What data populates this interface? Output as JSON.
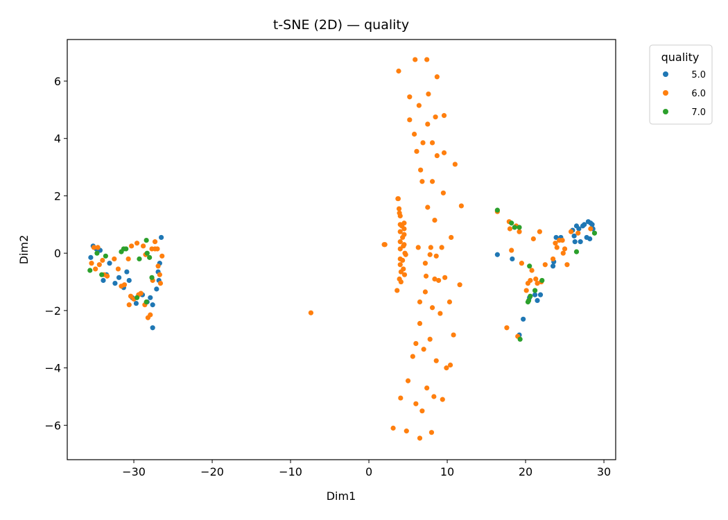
{
  "chart_data": {
    "type": "scatter",
    "title": "t-SNE (2D) — quality",
    "xlabel": "Dim1",
    "ylabel": "Dim2",
    "xlim": [
      -38.5,
      31.5
    ],
    "ylim": [
      -7.2,
      7.45
    ],
    "xticks": [
      -30,
      -20,
      -10,
      0,
      10,
      20,
      30
    ],
    "yticks": [
      -6,
      -4,
      -2,
      0,
      2,
      4,
      6
    ],
    "xtick_labels": [
      "−30",
      "−20",
      "−10",
      "0",
      "10",
      "20",
      "30"
    ],
    "ytick_labels": [
      "−6",
      "−4",
      "−2",
      "0",
      "2",
      "4",
      "6"
    ],
    "grid": false,
    "legend": {
      "title": "quality",
      "placement": "outside-top-right"
    },
    "series": [
      {
        "name": "5.0",
        "color": "#1f77b4",
        "points": [
          [
            -35.2,
            0.25
          ],
          [
            -35.5,
            -0.15
          ],
          [
            -34.8,
            0.15
          ],
          [
            -34.3,
            0.1
          ],
          [
            -33.9,
            -0.95
          ],
          [
            -33.5,
            -0.75
          ],
          [
            -33.1,
            -0.35
          ],
          [
            -32.4,
            -1.05
          ],
          [
            -31.9,
            -0.85
          ],
          [
            -31.3,
            -1.2
          ],
          [
            -30.9,
            -0.65
          ],
          [
            -30.6,
            -0.95
          ],
          [
            -30.2,
            -1.55
          ],
          [
            -29.7,
            -1.75
          ],
          [
            -28.9,
            -1.45
          ],
          [
            -28.3,
            -1.7
          ],
          [
            -27.9,
            -1.55
          ],
          [
            -27.6,
            -1.8
          ],
          [
            -27.6,
            -2.6
          ],
          [
            -27.1,
            -1.25
          ],
          [
            -26.8,
            -0.95
          ],
          [
            -26.7,
            -0.35
          ],
          [
            -26.5,
            0.55
          ],
          [
            -26.9,
            -0.65
          ],
          [
            16.4,
            -0.05
          ],
          [
            18.3,
            -0.2
          ],
          [
            19.2,
            -2.85
          ],
          [
            19.7,
            -2.3
          ],
          [
            20.5,
            -1.55
          ],
          [
            21.2,
            -1.45
          ],
          [
            21.5,
            -1.65
          ],
          [
            21.9,
            -1.45
          ],
          [
            23.5,
            -0.45
          ],
          [
            23.6,
            -0.3
          ],
          [
            23.9,
            0.55
          ],
          [
            24.5,
            0.55
          ],
          [
            26.0,
            0.8
          ],
          [
            26.2,
            0.6
          ],
          [
            26.3,
            0.4
          ],
          [
            26.5,
            0.95
          ],
          [
            26.8,
            0.85
          ],
          [
            27.0,
            0.4
          ],
          [
            27.3,
            0.95
          ],
          [
            27.5,
            1.0
          ],
          [
            27.8,
            0.55
          ],
          [
            28.0,
            1.1
          ],
          [
            28.2,
            0.5
          ],
          [
            28.3,
            1.05
          ],
          [
            28.5,
            1.0
          ],
          [
            28.6,
            0.85
          ]
        ]
      },
      {
        "name": "6.0",
        "color": "#ff7f0e",
        "points": [
          [
            -35.1,
            0.2
          ],
          [
            -35.4,
            -0.35
          ],
          [
            -34.9,
            -0.55
          ],
          [
            -34.6,
            0.2
          ],
          [
            -34.4,
            -0.4
          ],
          [
            -34.0,
            -0.25
          ],
          [
            -33.8,
            -0.75
          ],
          [
            -33.4,
            -0.8
          ],
          [
            -32.5,
            -0.2
          ],
          [
            -32.0,
            -0.55
          ],
          [
            -31.6,
            -1.15
          ],
          [
            -31.2,
            -1.1
          ],
          [
            -30.7,
            -0.2
          ],
          [
            -30.4,
            -1.5
          ],
          [
            -30.0,
            -1.6
          ],
          [
            -30.6,
            -1.8
          ],
          [
            -30.3,
            0.25
          ],
          [
            -29.6,
            0.35
          ],
          [
            -29.4,
            -1.45
          ],
          [
            -29.1,
            -1.4
          ],
          [
            -28.6,
            -1.8
          ],
          [
            -28.2,
            -2.25
          ],
          [
            -27.9,
            -2.15
          ],
          [
            -27.7,
            0.15
          ],
          [
            -27.6,
            -0.95
          ],
          [
            -27.3,
            0.4
          ],
          [
            -27.3,
            0.15
          ],
          [
            -27.0,
            0.15
          ],
          [
            -26.9,
            -0.45
          ],
          [
            -26.7,
            -0.75
          ],
          [
            -26.6,
            -1.05
          ],
          [
            -26.4,
            -0.1
          ],
          [
            -28.5,
            -0.05
          ],
          [
            -28.8,
            0.25
          ],
          [
            -7.4,
            -2.08
          ],
          [
            1.95,
            0.3
          ],
          [
            2.05,
            0.3
          ],
          [
            3.1,
            -6.1
          ],
          [
            3.6,
            -1.3
          ],
          [
            3.7,
            1.9
          ],
          [
            3.75,
            1.9
          ],
          [
            3.8,
            6.35
          ],
          [
            3.9,
            -0.9
          ],
          [
            3.85,
            1.55
          ],
          [
            3.9,
            1.4
          ],
          [
            4.0,
            1.3
          ],
          [
            4.0,
            1.0
          ],
          [
            4.0,
            0.75
          ],
          [
            4.0,
            0.4
          ],
          [
            4.0,
            0.15
          ],
          [
            4.0,
            -0.2
          ],
          [
            4.0,
            -0.4
          ],
          [
            4.1,
            -0.65
          ],
          [
            4.1,
            -1.0
          ],
          [
            4.05,
            -5.05
          ],
          [
            4.2,
            0.95
          ],
          [
            4.3,
            0.55
          ],
          [
            4.3,
            -0.25
          ],
          [
            4.4,
            -0.55
          ],
          [
            4.4,
            0.25
          ],
          [
            4.5,
            0.65
          ],
          [
            4.5,
            1.05
          ],
          [
            4.5,
            0.85
          ],
          [
            4.5,
            0.3
          ],
          [
            4.55,
            -0.75
          ],
          [
            4.6,
            0.0
          ],
          [
            4.7,
            -0.05
          ],
          [
            4.8,
            -6.2
          ],
          [
            5.0,
            -4.45
          ],
          [
            5.2,
            4.65
          ],
          [
            5.2,
            5.45
          ],
          [
            5.6,
            -3.6
          ],
          [
            5.8,
            4.15
          ],
          [
            5.9,
            6.75
          ],
          [
            6.0,
            -3.15
          ],
          [
            6.0,
            -5.25
          ],
          [
            6.1,
            3.55
          ],
          [
            6.3,
            0.2
          ],
          [
            6.4,
            5.15
          ],
          [
            6.5,
            -1.7
          ],
          [
            6.5,
            -2.45
          ],
          [
            6.5,
            -6.45
          ],
          [
            6.6,
            2.9
          ],
          [
            6.8,
            -5.5
          ],
          [
            6.8,
            2.5
          ],
          [
            6.9,
            3.85
          ],
          [
            7.0,
            -3.35
          ],
          [
            7.2,
            -0.35
          ],
          [
            7.2,
            -1.35
          ],
          [
            7.3,
            -0.8
          ],
          [
            7.4,
            -4.7
          ],
          [
            7.4,
            6.75
          ],
          [
            7.5,
            1.6
          ],
          [
            7.5,
            4.5
          ],
          [
            7.6,
            5.55
          ],
          [
            7.8,
            -0.05
          ],
          [
            7.8,
            -3.0
          ],
          [
            7.9,
            0.2
          ],
          [
            8.0,
            -6.25
          ],
          [
            8.1,
            -1.9
          ],
          [
            8.1,
            3.85
          ],
          [
            8.1,
            2.5
          ],
          [
            8.3,
            -5.0
          ],
          [
            8.4,
            1.15
          ],
          [
            8.4,
            -0.9
          ],
          [
            8.5,
            4.75
          ],
          [
            8.6,
            -3.75
          ],
          [
            8.6,
            -0.1
          ],
          [
            8.7,
            6.15
          ],
          [
            8.7,
            3.4
          ],
          [
            8.9,
            -0.95
          ],
          [
            9.1,
            -2.1
          ],
          [
            9.3,
            0.2
          ],
          [
            9.4,
            -5.1
          ],
          [
            9.5,
            2.1
          ],
          [
            9.6,
            4.8
          ],
          [
            9.6,
            3.5
          ],
          [
            9.7,
            -0.85
          ],
          [
            9.9,
            -4.0
          ],
          [
            10.3,
            -1.7
          ],
          [
            10.4,
            -3.9
          ],
          [
            10.5,
            0.55
          ],
          [
            10.8,
            -2.85
          ],
          [
            11.0,
            3.1
          ],
          [
            11.6,
            -1.1
          ],
          [
            11.8,
            1.65
          ],
          [
            16.4,
            1.45
          ],
          [
            17.6,
            -2.6
          ],
          [
            17.9,
            1.1
          ],
          [
            18.0,
            0.85
          ],
          [
            18.2,
            0.1
          ],
          [
            18.8,
            0.95
          ],
          [
            19.0,
            -2.9
          ],
          [
            19.2,
            0.75
          ],
          [
            19.5,
            -0.35
          ],
          [
            20.1,
            -1.3
          ],
          [
            20.3,
            -1.05
          ],
          [
            20.6,
            -0.95
          ],
          [
            20.8,
            -0.6
          ],
          [
            21.0,
            0.5
          ],
          [
            21.3,
            -0.9
          ],
          [
            21.5,
            -1.05
          ],
          [
            21.8,
            0.75
          ],
          [
            22.0,
            -1.0
          ],
          [
            22.5,
            -0.4
          ],
          [
            23.5,
            -0.2
          ],
          [
            23.8,
            0.35
          ],
          [
            24.0,
            0.2
          ],
          [
            24.3,
            0.45
          ],
          [
            24.7,
            0.45
          ],
          [
            24.8,
            0.0
          ],
          [
            25.0,
            0.15
          ],
          [
            25.3,
            -0.4
          ],
          [
            25.8,
            0.75
          ],
          [
            26.7,
            0.7
          ],
          [
            28.3,
            0.85
          ]
        ]
      },
      {
        "name": "7.0",
        "color": "#2ca02c",
        "points": [
          [
            -35.6,
            -0.6
          ],
          [
            -34.7,
            0.0
          ],
          [
            -34.1,
            -0.75
          ],
          [
            -33.6,
            -0.1
          ],
          [
            -31.6,
            0.05
          ],
          [
            -31.3,
            0.15
          ],
          [
            -31.0,
            0.15
          ],
          [
            -29.3,
            -0.2
          ],
          [
            -28.4,
            0.45
          ],
          [
            -28.3,
            0.0
          ],
          [
            -28.0,
            -0.15
          ],
          [
            -27.7,
            -0.85
          ],
          [
            -28.4,
            -1.7
          ],
          [
            -29.6,
            -1.55
          ],
          [
            16.4,
            1.5
          ],
          [
            18.2,
            1.05
          ],
          [
            18.6,
            0.9
          ],
          [
            19.2,
            0.9
          ],
          [
            19.3,
            -3.0
          ],
          [
            20.3,
            -1.7
          ],
          [
            20.5,
            -0.45
          ],
          [
            20.4,
            -1.65
          ],
          [
            20.6,
            -1.5
          ],
          [
            21.2,
            -1.3
          ],
          [
            22.1,
            -0.95
          ],
          [
            26.5,
            0.05
          ],
          [
            28.8,
            0.7
          ]
        ]
      }
    ]
  }
}
